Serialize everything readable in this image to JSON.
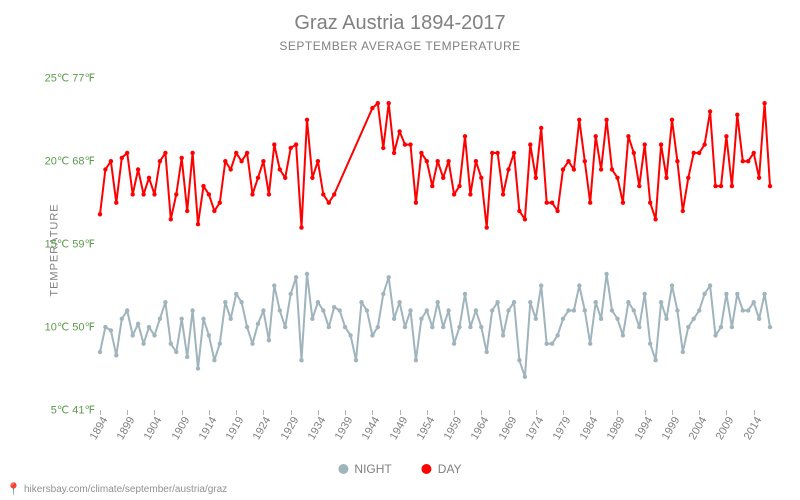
{
  "title": "Graz Austria 1894-2017",
  "subtitle": "SEPTEMBER AVERAGE TEMPERATURE",
  "y_axis_label": "TEMPERATURE",
  "credit_url": "hikersbay.com/climate/september/austria/graz",
  "chart": {
    "type": "line",
    "y_min": 5,
    "y_max": 25.5,
    "y_ticks": [
      {
        "c": 5,
        "f": 41,
        "label": "5℃ 41℉"
      },
      {
        "c": 10,
        "f": 50,
        "label": "10℃ 50℉"
      },
      {
        "c": 15,
        "f": 59,
        "label": "15℃ 59℉"
      },
      {
        "c": 20,
        "f": 68,
        "label": "20℃ 68℉"
      },
      {
        "c": 25,
        "f": 77,
        "label": "25℃ 77℉"
      }
    ],
    "x_ticks": [
      1894,
      1899,
      1904,
      1909,
      1914,
      1919,
      1924,
      1929,
      1934,
      1939,
      1944,
      1949,
      1954,
      1959,
      1964,
      1969,
      1974,
      1979,
      1984,
      1989,
      1994,
      1999,
      2004,
      2009,
      2014
    ],
    "x_min": 1894,
    "x_max": 2017,
    "line_width": 2,
    "marker_radius": 2.2,
    "tick_font_size": 11,
    "tick_color": "#5b9b4a",
    "x_tick_color": "#808080",
    "background_color": "#ffffff",
    "series": [
      {
        "name": "NIGHT",
        "color": "#9fb4bc",
        "years": [
          1894,
          1895,
          1896,
          1897,
          1898,
          1899,
          1900,
          1901,
          1902,
          1903,
          1904,
          1905,
          1906,
          1907,
          1908,
          1909,
          1910,
          1911,
          1912,
          1913,
          1914,
          1915,
          1916,
          1917,
          1918,
          1919,
          1920,
          1921,
          1922,
          1923,
          1924,
          1925,
          1926,
          1927,
          1928,
          1929,
          1930,
          1931,
          1932,
          1933,
          1934,
          1935,
          1936,
          1937,
          1938,
          1939,
          1940,
          1941,
          1942,
          1943,
          1944,
          1945,
          1946,
          1947,
          1948,
          1949,
          1950,
          1951,
          1952,
          1953,
          1954,
          1955,
          1956,
          1957,
          1958,
          1959,
          1960,
          1961,
          1962,
          1963,
          1964,
          1965,
          1966,
          1967,
          1968,
          1969,
          1970,
          1971,
          1972,
          1973,
          1974,
          1975,
          1976,
          1977,
          1978,
          1979,
          1980,
          1981,
          1982,
          1983,
          1984,
          1985,
          1986,
          1987,
          1988,
          1989,
          1990,
          1991,
          1992,
          1993,
          1994,
          1995,
          1996,
          1997,
          1998,
          1999,
          2000,
          2001,
          2002,
          2003,
          2004,
          2005,
          2006,
          2007,
          2008,
          2009,
          2010,
          2011,
          2012,
          2013,
          2014,
          2015,
          2016,
          2017
        ],
        "values": [
          8.5,
          10.0,
          9.8,
          8.3,
          10.5,
          11.0,
          9.5,
          10.2,
          9.0,
          10.0,
          9.5,
          10.5,
          11.5,
          9.0,
          8.5,
          10.5,
          8.2,
          11.0,
          7.5,
          10.5,
          9.5,
          8.0,
          9.0,
          11.5,
          10.5,
          12.0,
          11.5,
          10.0,
          9.0,
          10.2,
          11.0,
          9.2,
          12.5,
          11.0,
          10.0,
          12.0,
          13.0,
          8.0,
          13.2,
          10.5,
          11.5,
          11.0,
          10.0,
          11.2,
          11.0,
          10.0,
          9.5,
          8.0,
          11.5,
          11.0,
          9.5,
          10.0,
          12.0,
          13.0,
          10.5,
          11.5,
          10.0,
          11.0,
          8.0,
          10.5,
          11.0,
          10.0,
          11.5,
          10.0,
          11.0,
          9.0,
          10.0,
          12.0,
          10.0,
          11.0,
          10.0,
          8.5,
          11.0,
          11.5,
          9.5,
          11.0,
          11.5,
          8.0,
          7.0,
          11.5,
          10.5,
          12.5,
          9.0,
          9.0,
          9.5,
          10.5,
          11.0,
          11.0,
          12.5,
          11.0,
          9.0,
          11.5,
          10.5,
          13.2,
          11.0,
          10.5,
          9.5,
          11.5,
          11.0,
          10.0,
          12.0,
          9.0,
          8.0,
          11.5,
          10.5,
          12.5,
          11.0,
          8.5,
          10.0,
          10.5,
          11.0,
          12.0,
          12.5,
          9.5,
          10.0,
          12.0,
          10.0,
          12.0,
          11.0,
          11.0,
          11.5,
          10.5,
          12.0,
          10.0
        ]
      },
      {
        "name": "DAY",
        "color": "#ff0000",
        "years": [
          1894,
          1895,
          1896,
          1897,
          1898,
          1899,
          1900,
          1901,
          1902,
          1903,
          1904,
          1905,
          1906,
          1907,
          1908,
          1909,
          1910,
          1911,
          1912,
          1913,
          1914,
          1915,
          1916,
          1917,
          1918,
          1919,
          1920,
          1921,
          1922,
          1923,
          1924,
          1925,
          1926,
          1927,
          1928,
          1929,
          1930,
          1931,
          1932,
          1933,
          1934,
          1935,
          1936,
          1937,
          1944,
          1945,
          1946,
          1947,
          1948,
          1949,
          1950,
          1951,
          1952,
          1953,
          1954,
          1955,
          1956,
          1957,
          1958,
          1959,
          1960,
          1961,
          1962,
          1963,
          1964,
          1965,
          1966,
          1967,
          1968,
          1969,
          1970,
          1971,
          1972,
          1973,
          1974,
          1975,
          1976,
          1977,
          1978,
          1979,
          1980,
          1981,
          1982,
          1983,
          1984,
          1985,
          1986,
          1987,
          1988,
          1989,
          1990,
          1991,
          1992,
          1993,
          1994,
          1995,
          1996,
          1997,
          1998,
          1999,
          2000,
          2001,
          2002,
          2003,
          2004,
          2005,
          2006,
          2007,
          2008,
          2009,
          2010,
          2011,
          2012,
          2013,
          2014,
          2015,
          2016,
          2017
        ],
        "values": [
          16.8,
          19.5,
          20.0,
          17.5,
          20.2,
          20.5,
          18.0,
          19.5,
          18.0,
          19.0,
          18.0,
          20.0,
          20.5,
          16.5,
          18.0,
          20.2,
          17.0,
          20.5,
          16.2,
          18.5,
          18.0,
          17.0,
          17.5,
          20.0,
          19.5,
          20.5,
          20.0,
          20.5,
          18.0,
          19.0,
          20.0,
          18.0,
          21.0,
          19.5,
          19.0,
          20.8,
          21.0,
          16.0,
          22.5,
          19.0,
          20.0,
          18.0,
          17.5,
          18.0,
          23.2,
          23.5,
          20.8,
          23.5,
          20.5,
          21.8,
          21.0,
          21.0,
          17.5,
          20.5,
          20.0,
          18.5,
          20.0,
          19.0,
          20.0,
          18.0,
          18.5,
          21.5,
          18.0,
          20.0,
          19.0,
          16.0,
          20.5,
          20.5,
          18.0,
          19.5,
          20.5,
          17.0,
          16.5,
          21.0,
          19.0,
          22.0,
          17.5,
          17.5,
          17.0,
          19.5,
          20.0,
          19.5,
          22.5,
          20.0,
          17.5,
          21.5,
          19.5,
          22.5,
          19.5,
          19.0,
          17.5,
          21.5,
          20.5,
          18.5,
          21.0,
          17.5,
          16.5,
          21.0,
          19.0,
          22.5,
          20.0,
          17.0,
          19.0,
          20.5,
          20.5,
          21.0,
          23.0,
          18.5,
          18.5,
          21.5,
          18.5,
          22.8,
          20.0,
          20.0,
          20.5,
          19.0,
          23.5,
          18.5
        ]
      }
    ]
  },
  "legend": {
    "night_label": "NIGHT",
    "day_label": "DAY"
  }
}
